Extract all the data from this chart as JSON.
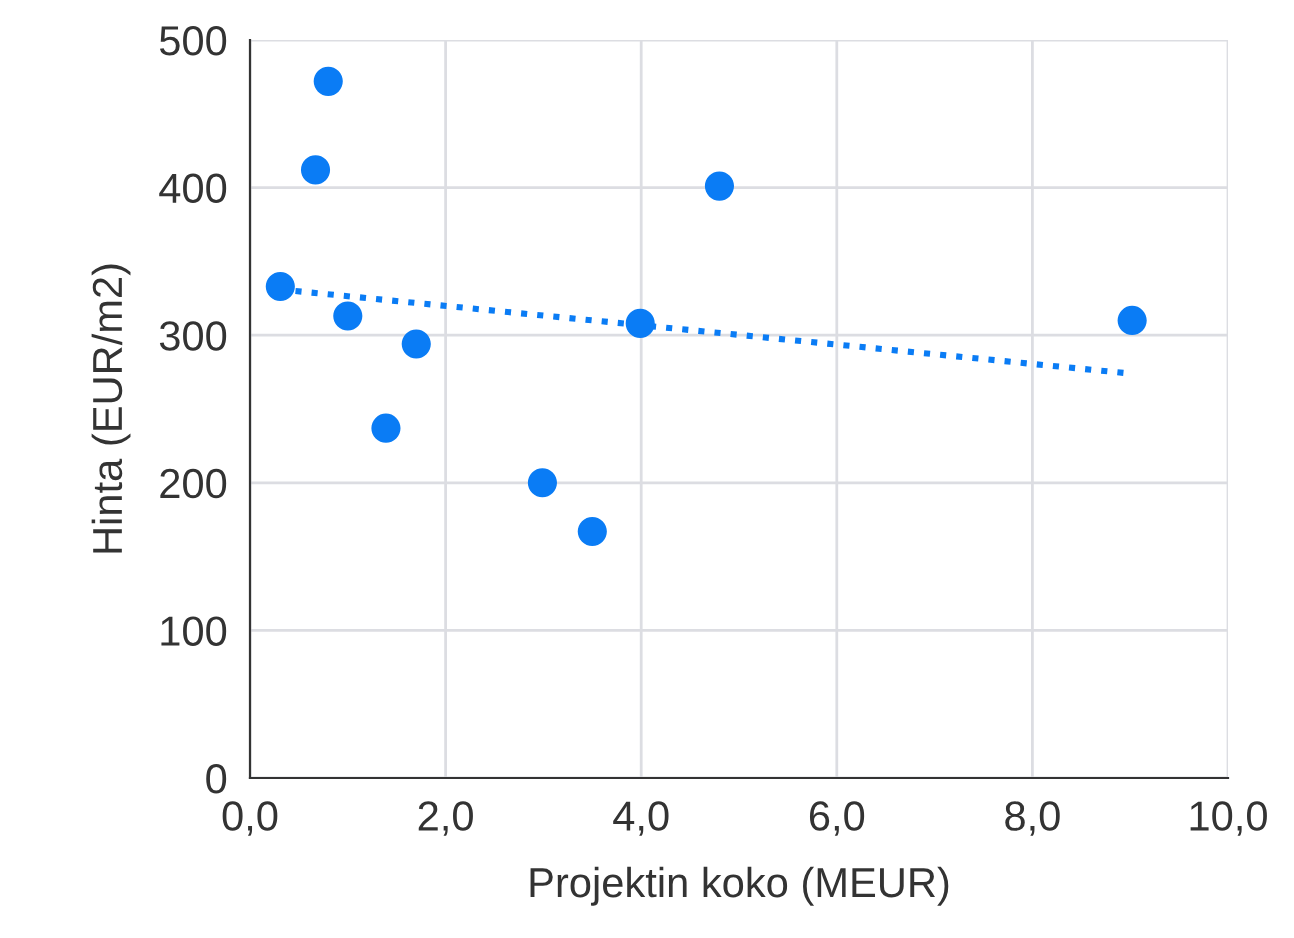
{
  "chart_data": {
    "type": "scatter",
    "xlabel": "Projektin koko (MEUR)",
    "ylabel": "Hinta (EUR/m2)",
    "xlim": [
      0,
      10
    ],
    "xticks": [
      {
        "value": 0,
        "label": "0,0"
      },
      {
        "value": 2,
        "label": "2,0"
      },
      {
        "value": 4,
        "label": "4,0"
      },
      {
        "value": 6,
        "label": "6,0"
      },
      {
        "value": 8,
        "label": "8,0"
      },
      {
        "value": 10,
        "label": "10,0"
      }
    ],
    "ylim": [
      0,
      500
    ],
    "yticks": [
      0,
      100,
      200,
      300,
      400,
      500
    ],
    "grid": true,
    "legend": false,
    "marker": "circle",
    "series": [
      {
        "color": "#0a7cf5",
        "x": [
          0.31,
          0.8,
          0.67,
          1.0,
          1.7,
          1.39,
          2.99,
          3.5,
          3.99,
          4.8,
          9.02
        ],
        "values": [
          333,
          472,
          412,
          313,
          294,
          237,
          200,
          167,
          308,
          401,
          310
        ]
      },
      {
        "type": "line",
        "color": "#0a7cf5",
        "line_style": "dotted",
        "marker": "none",
        "x": [
          0.3,
          9.0
        ],
        "values": [
          331,
          274
        ]
      }
    ]
  }
}
